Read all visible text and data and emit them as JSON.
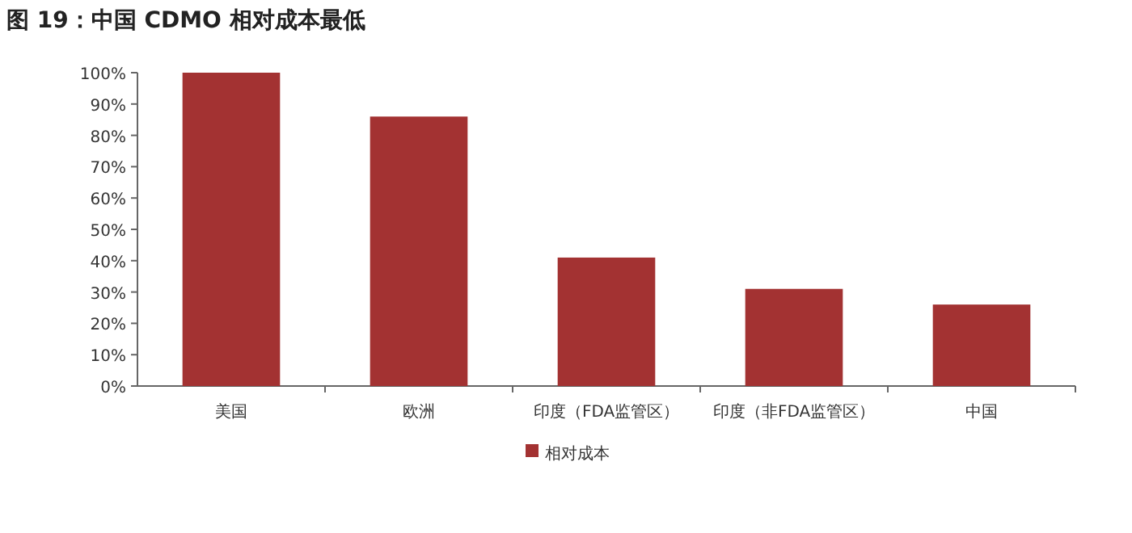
{
  "chart_data": {
    "type": "bar",
    "title": "图 19：中国 CDMO 相对成本最低",
    "categories": [
      "美国",
      "欧洲",
      "印度（FDA监管区）",
      "印度（非FDA监管区）",
      "中国"
    ],
    "series": [
      {
        "name": "相对成本",
        "color": "#a33232",
        "values": [
          100,
          86,
          41,
          31,
          26
        ]
      }
    ],
    "ylim": [
      0,
      100
    ],
    "yticks": [
      {
        "value": 0,
        "label": "0%"
      },
      {
        "value": 10,
        "label": "10%"
      },
      {
        "value": 20,
        "label": "20%"
      },
      {
        "value": 30,
        "label": "30%"
      },
      {
        "value": 40,
        "label": "40%"
      },
      {
        "value": 50,
        "label": "50%"
      },
      {
        "value": 60,
        "label": "60%"
      },
      {
        "value": 70,
        "label": "70%"
      },
      {
        "value": 80,
        "label": "80%"
      },
      {
        "value": 90,
        "label": "90%"
      },
      {
        "value": 100,
        "label": "100%"
      }
    ],
    "grid": false,
    "legend": "bottom"
  }
}
